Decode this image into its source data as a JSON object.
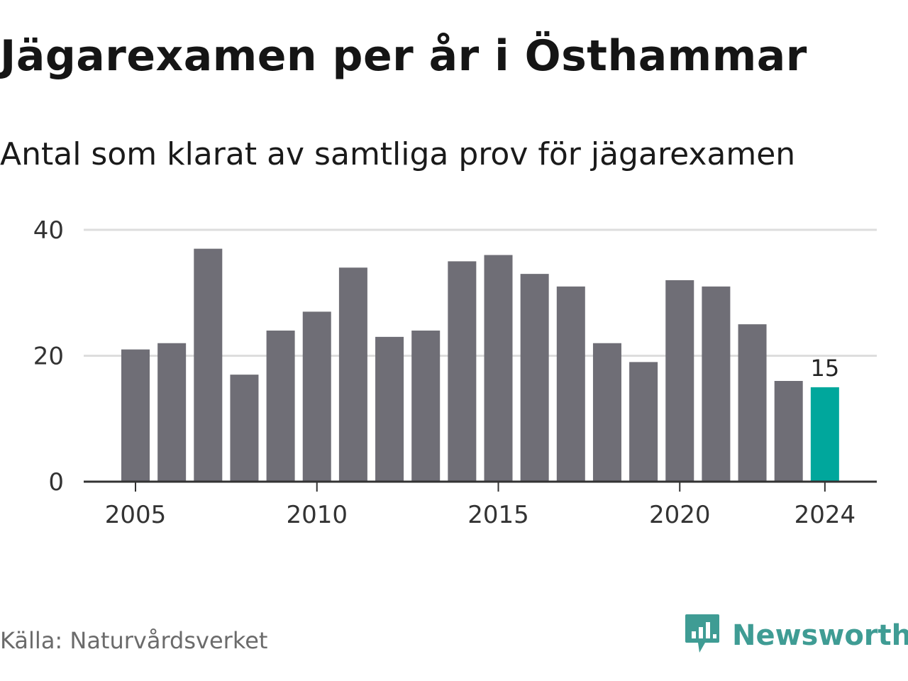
{
  "header": {
    "title": "Jägarexamen per år i Östhammar",
    "subtitle": "Antal som klarat av samtliga prov för jägarexamen"
  },
  "footer": {
    "source": "Källa: Naturvårdsverket",
    "brand_name": "Newsworthy",
    "brand_icon": "newsworthy-logo-icon"
  },
  "colors": {
    "bar": "#6f6e76",
    "highlight": "#00a79c",
    "grid": "#dddddd",
    "axis": "#333333",
    "brand": "#3f9c94"
  },
  "chart_data": {
    "type": "bar",
    "title": "Jägarexamen per år i Östhammar",
    "subtitle": "Antal som klarat av samtliga prov för jägarexamen",
    "xlabel": "",
    "ylabel": "",
    "categories": [
      2005,
      2006,
      2007,
      2008,
      2009,
      2010,
      2011,
      2012,
      2013,
      2014,
      2015,
      2016,
      2017,
      2018,
      2019,
      2020,
      2021,
      2022,
      2023,
      2024
    ],
    "values": [
      21,
      22,
      37,
      17,
      24,
      27,
      34,
      23,
      24,
      35,
      36,
      33,
      31,
      22,
      19,
      32,
      31,
      25,
      16,
      15
    ],
    "ylim": [
      0,
      40
    ],
    "yticks": [
      0,
      20,
      40
    ],
    "xticks": [
      2005,
      2010,
      2015,
      2020,
      2024
    ],
    "highlight": {
      "category": 2024,
      "label": "15"
    },
    "grid": true,
    "legend": "none"
  }
}
